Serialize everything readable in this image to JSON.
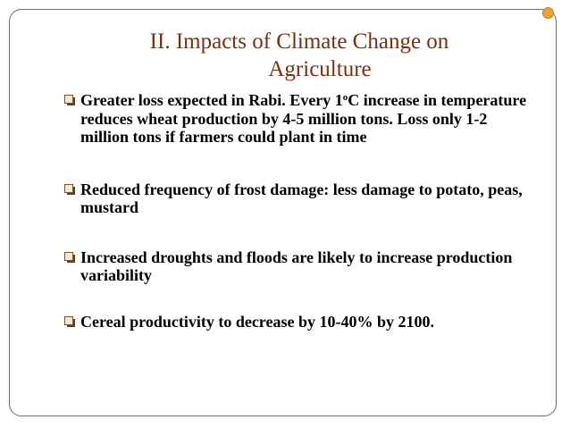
{
  "slide": {
    "title_line1": "II. Impacts of Climate Change on",
    "title_line2": "Agriculture",
    "bullets": [
      {
        "pre": "Greater loss expected in Rabi.  Every 1",
        "sup": "o",
        "post": "C increase in temperature reduces wheat production by 4-5 million tons. Loss only 1-2 million tons if farmers could plant in time"
      },
      {
        "text": "Reduced frequency of frost damage: less damage to potato, peas, mustard"
      },
      {
        "text": "Increased droughts and floods are likely to increase production variability"
      },
      {
        "text": "Cereal productivity to decrease by 10-40% by 2100."
      }
    ]
  },
  "colors": {
    "title": "#7a2f12",
    "frame": "#6b6b6b",
    "accent_dot": "#e8a13c",
    "bullet_marker": "#8a4b22"
  }
}
